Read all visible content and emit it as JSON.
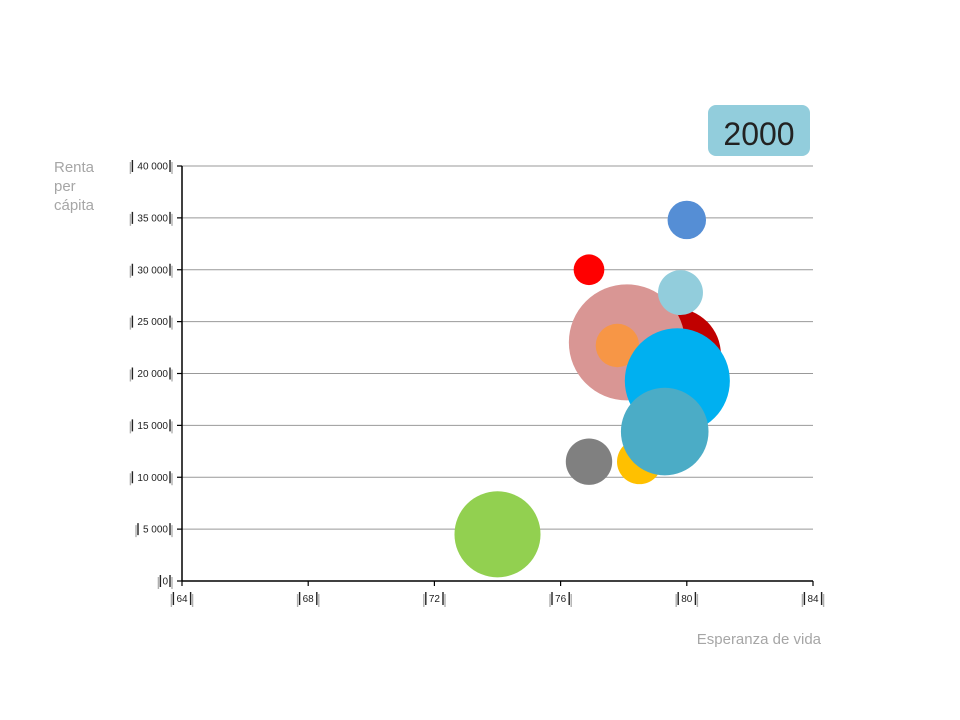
{
  "chart_data": {
    "type": "scatter",
    "title": "",
    "year_label": "2000",
    "ylabel": "Renta\nper\ncápita",
    "xlabel": "Esperanza de vida",
    "xlim": [
      64,
      84
    ],
    "ylim": [
      0,
      40000
    ],
    "x_ticks": [
      64,
      68,
      72,
      76,
      80,
      84
    ],
    "x_tick_labels": [
      "64",
      "68",
      "72",
      "76",
      "80",
      "84"
    ],
    "y_ticks": [
      0,
      5000,
      10000,
      15000,
      20000,
      25000,
      30000,
      35000,
      40000
    ],
    "y_tick_labels": [
      "0",
      "5 000",
      "10 000",
      "15 000",
      "20 000",
      "25 000",
      "30 000",
      "35 000",
      "40 000"
    ],
    "grid": true,
    "colors": {
      "year_badge": "#92cddc",
      "gridline": "#999999",
      "axis": "#000000"
    },
    "points": [
      {
        "x": 79.6,
        "y": 21800,
        "size": 0.65,
        "color": "#c00000"
      },
      {
        "x": 78.1,
        "y": 23000,
        "size": 1.0,
        "color": "#d99694"
      },
      {
        "x": 79.8,
        "y": 27800,
        "size": 0.15,
        "color": "#92cddc"
      },
      {
        "x": 80.0,
        "y": 34800,
        "size": 0.11,
        "color": "#558ed5"
      },
      {
        "x": 76.9,
        "y": 30000,
        "size": 0.07,
        "color": "#ff0000"
      },
      {
        "x": 77.8,
        "y": 22700,
        "size": 0.14,
        "color": "#f79646"
      },
      {
        "x": 79.7,
        "y": 19300,
        "size": 0.82,
        "color": "#00b0f0"
      },
      {
        "x": 78.5,
        "y": 11500,
        "size": 0.15,
        "color": "#ffc000"
      },
      {
        "x": 76.9,
        "y": 11500,
        "size": 0.16,
        "color": "#808080"
      },
      {
        "x": 79.3,
        "y": 14400,
        "size": 0.57,
        "color": "#4bacc6"
      },
      {
        "x": 74.0,
        "y": 4500,
        "size": 0.55,
        "color": "#92d050"
      }
    ]
  }
}
